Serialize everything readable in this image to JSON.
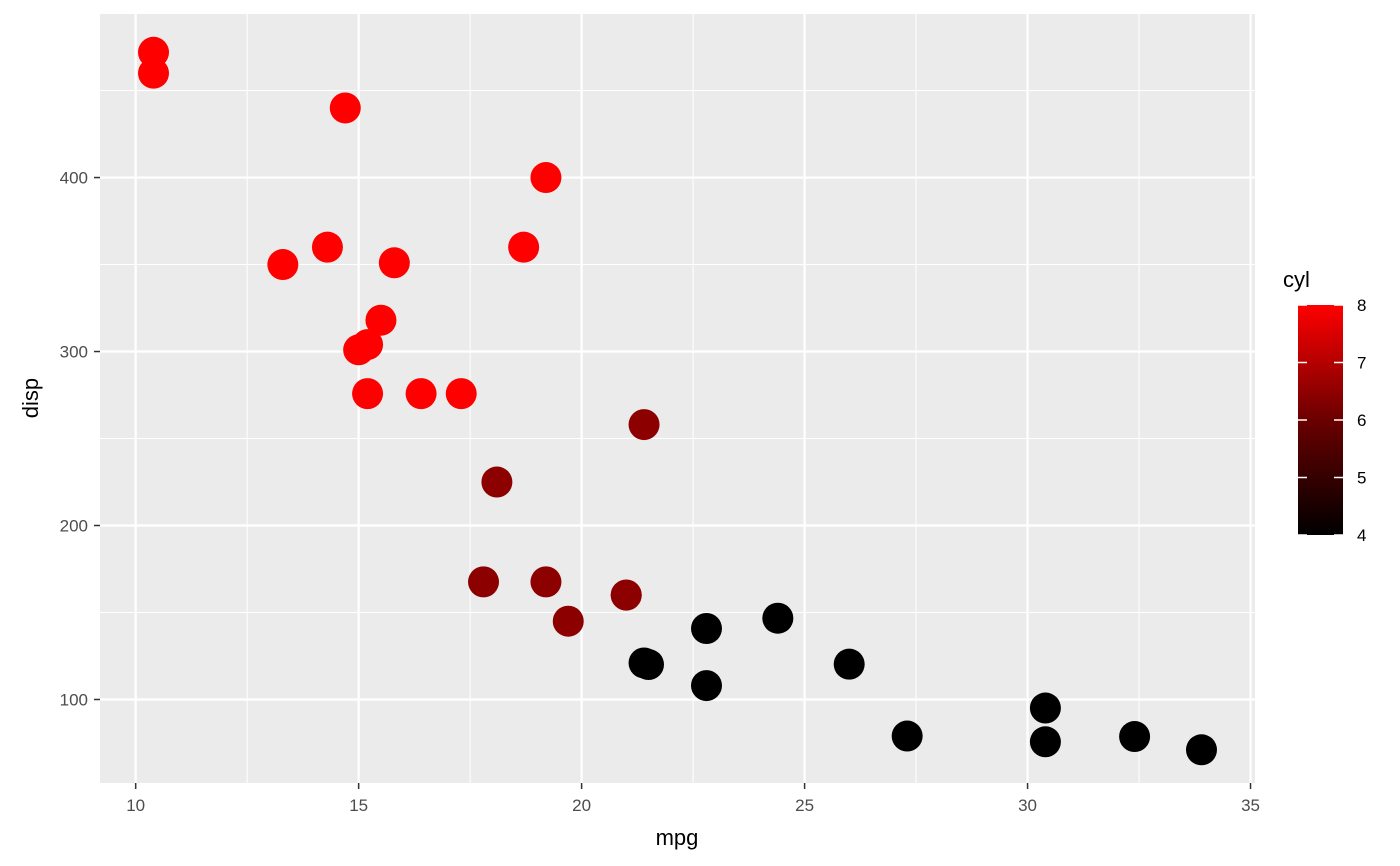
{
  "chart_data": {
    "type": "scatter",
    "title": "",
    "xlabel": "mpg",
    "ylabel": "disp",
    "xlim": [
      9.2,
      35.1
    ],
    "ylim": [
      52,
      494
    ],
    "xticks": [
      10,
      15,
      20,
      25,
      30,
      35
    ],
    "yticks": [
      100,
      200,
      300,
      400
    ],
    "grid": true,
    "color_variable": "cyl",
    "color_scale": {
      "low": "#000000",
      "high": "#ff0000",
      "range": [
        4,
        8
      ],
      "ticks": [
        4,
        5,
        6,
        7,
        8
      ]
    },
    "legend_position": "right",
    "points": [
      {
        "x": 21.0,
        "y": 160,
        "c": 6
      },
      {
        "x": 21.0,
        "y": 160,
        "c": 6
      },
      {
        "x": 22.8,
        "y": 108,
        "c": 4
      },
      {
        "x": 21.4,
        "y": 258,
        "c": 6
      },
      {
        "x": 18.7,
        "y": 360,
        "c": 8
      },
      {
        "x": 18.1,
        "y": 225,
        "c": 6
      },
      {
        "x": 14.3,
        "y": 360,
        "c": 8
      },
      {
        "x": 24.4,
        "y": 146.7,
        "c": 4
      },
      {
        "x": 22.8,
        "y": 140.8,
        "c": 4
      },
      {
        "x": 19.2,
        "y": 167.6,
        "c": 6
      },
      {
        "x": 17.8,
        "y": 167.6,
        "c": 6
      },
      {
        "x": 16.4,
        "y": 275.8,
        "c": 8
      },
      {
        "x": 17.3,
        "y": 275.8,
        "c": 8
      },
      {
        "x": 15.2,
        "y": 275.8,
        "c": 8
      },
      {
        "x": 10.4,
        "y": 472,
        "c": 8
      },
      {
        "x": 10.4,
        "y": 460,
        "c": 8
      },
      {
        "x": 14.7,
        "y": 440,
        "c": 8
      },
      {
        "x": 32.4,
        "y": 78.7,
        "c": 4
      },
      {
        "x": 30.4,
        "y": 75.7,
        "c": 4
      },
      {
        "x": 33.9,
        "y": 71.1,
        "c": 4
      },
      {
        "x": 21.5,
        "y": 120.1,
        "c": 4
      },
      {
        "x": 15.5,
        "y": 318,
        "c": 8
      },
      {
        "x": 15.2,
        "y": 304,
        "c": 8
      },
      {
        "x": 13.3,
        "y": 350,
        "c": 8
      },
      {
        "x": 19.2,
        "y": 400,
        "c": 8
      },
      {
        "x": 27.3,
        "y": 79,
        "c": 4
      },
      {
        "x": 26.0,
        "y": 120.3,
        "c": 4
      },
      {
        "x": 30.4,
        "y": 95.1,
        "c": 4
      },
      {
        "x": 15.8,
        "y": 351,
        "c": 8
      },
      {
        "x": 19.7,
        "y": 145,
        "c": 6
      },
      {
        "x": 15.0,
        "y": 301,
        "c": 8
      },
      {
        "x": 21.4,
        "y": 121,
        "c": 4
      }
    ]
  }
}
